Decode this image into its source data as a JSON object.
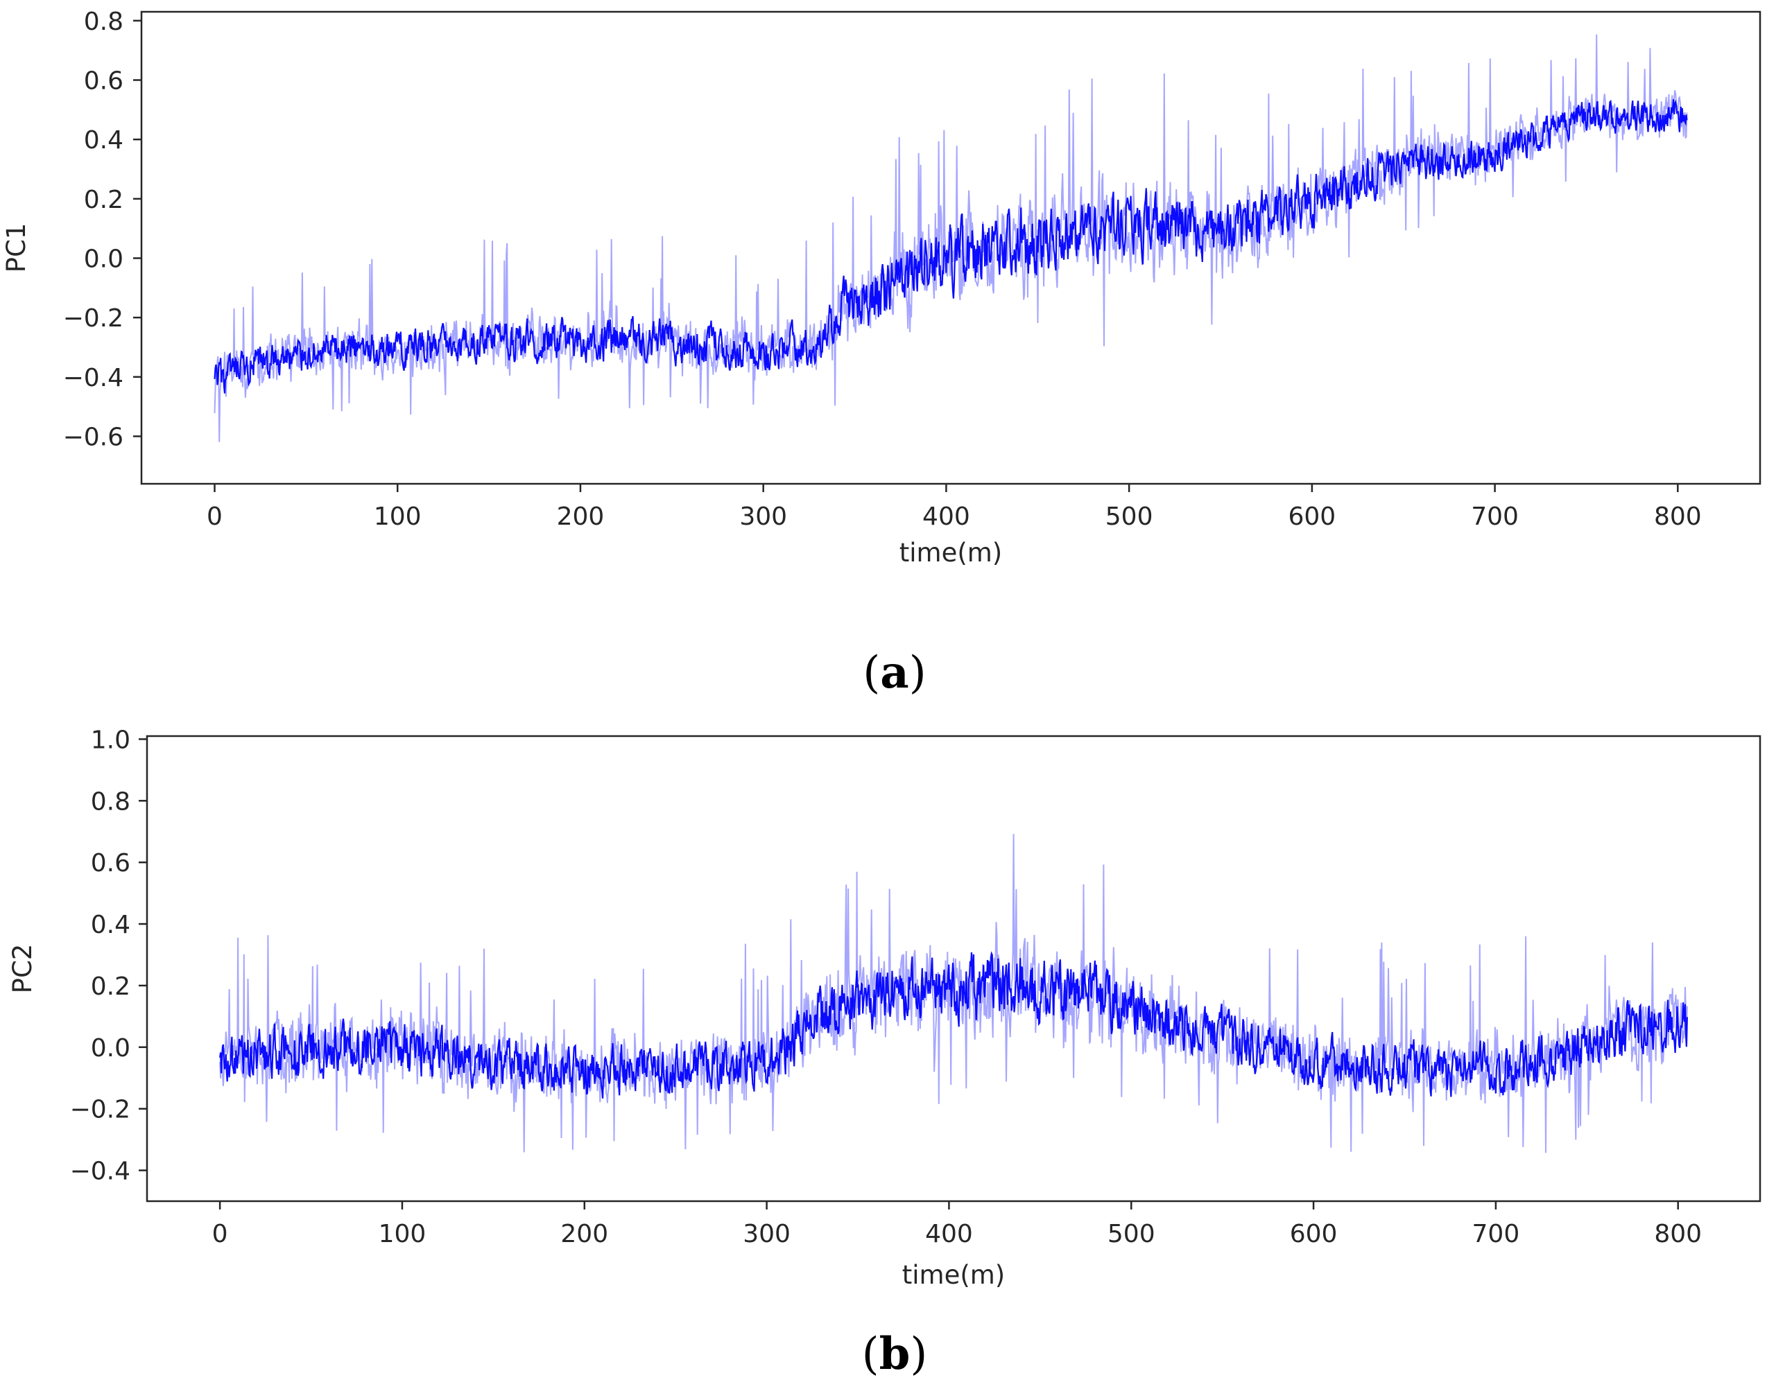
{
  "chart_data": [
    {
      "type": "line",
      "panel_label": "a",
      "xlabel": "time(m)",
      "ylabel": "PC1",
      "xlim": [
        -40,
        845
      ],
      "ylim": [
        -0.76,
        0.83
      ],
      "xticks": [
        0,
        100,
        200,
        300,
        400,
        500,
        600,
        700,
        800
      ],
      "yticks": [
        -0.6,
        -0.4,
        -0.2,
        0.0,
        0.2,
        0.4,
        0.6,
        0.8
      ],
      "ytick_labels": [
        "−0.6",
        "−0.4",
        "−0.2",
        "0.0",
        "0.2",
        "0.4",
        "0.6",
        "0.8"
      ],
      "grid": false,
      "color": "#0000ff",
      "series": [
        {
          "x": [
            0,
            25,
            50,
            100,
            150,
            200,
            250,
            300,
            330,
            345,
            360,
            380,
            400,
            450,
            500,
            550,
            600,
            650,
            700,
            750,
            805
          ],
          "y": [
            -0.42,
            -0.36,
            -0.32,
            -0.3,
            -0.28,
            -0.28,
            -0.28,
            -0.31,
            -0.3,
            -0.15,
            -0.14,
            -0.05,
            0.0,
            0.06,
            0.12,
            0.08,
            0.2,
            0.32,
            0.35,
            0.48,
            0.48
          ],
          "spread": [
            0.14,
            0.13,
            0.13,
            0.13,
            0.14,
            0.14,
            0.15,
            0.14,
            0.15,
            0.18,
            0.2,
            0.23,
            0.24,
            0.23,
            0.22,
            0.2,
            0.18,
            0.14,
            0.13,
            0.11,
            0.11
          ]
        }
      ]
    },
    {
      "type": "line",
      "panel_label": "b",
      "xlabel": "time(m)",
      "ylabel": "PC2",
      "xlim": [
        -40,
        845
      ],
      "ylim": [
        -0.5,
        1.01
      ],
      "xticks": [
        0,
        100,
        200,
        300,
        400,
        500,
        600,
        700,
        800
      ],
      "yticks": [
        -0.4,
        -0.2,
        0.0,
        0.2,
        0.4,
        0.6,
        0.8,
        1.0
      ],
      "ytick_labels": [
        "−0.4",
        "−0.2",
        "0.0",
        "0.2",
        "0.4",
        "0.6",
        "0.8",
        "1.0"
      ],
      "grid": false,
      "color": "#0000ff",
      "series": [
        {
          "x": [
            0,
            50,
            100,
            150,
            200,
            250,
            300,
            330,
            350,
            380,
            400,
            440,
            480,
            520,
            560,
            600,
            650,
            700,
            730,
            760,
            805
          ],
          "y": [
            -0.05,
            0.0,
            0.0,
            -0.05,
            -0.08,
            -0.07,
            -0.05,
            0.1,
            0.14,
            0.2,
            0.18,
            0.2,
            0.17,
            0.08,
            0.02,
            -0.05,
            -0.06,
            -0.08,
            -0.04,
            0.05,
            0.08
          ],
          "spread": [
            0.16,
            0.18,
            0.18,
            0.17,
            0.16,
            0.16,
            0.16,
            0.2,
            0.2,
            0.22,
            0.22,
            0.24,
            0.22,
            0.18,
            0.17,
            0.16,
            0.16,
            0.17,
            0.17,
            0.18,
            0.18
          ]
        }
      ]
    }
  ]
}
